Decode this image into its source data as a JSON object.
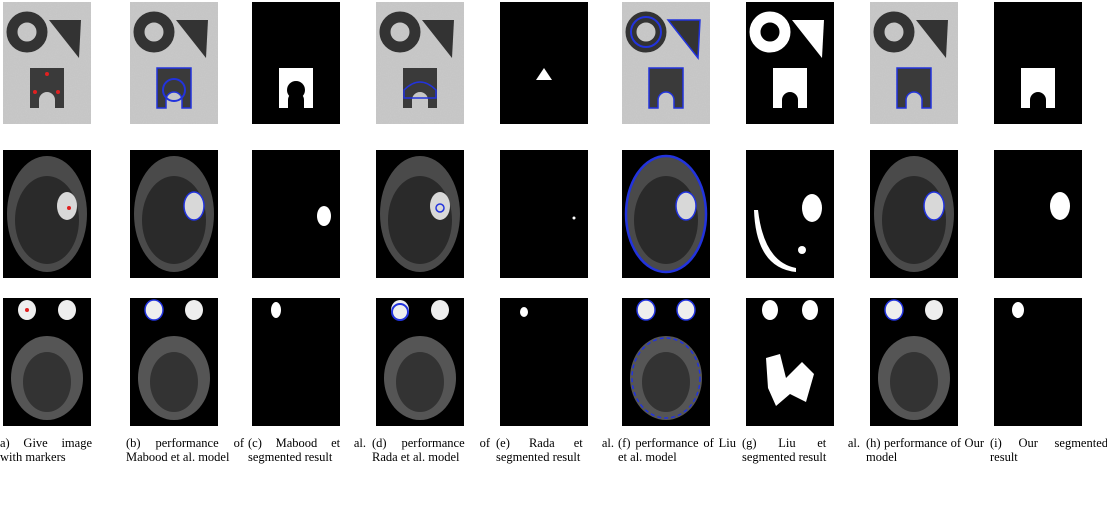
{
  "figure": {
    "captions": [
      "a) Give image with markers",
      "(b) performance of Mabood et al. model",
      "(c) Mabood et al. segmented result",
      "(d) performance of Rada et al. model",
      "(e) Rada et al. segmented result",
      "(f) performance of Liu et al. model",
      "(g) Liu et al. segmented result",
      "(h) performance of Our model",
      "(i) Our segmented result"
    ]
  }
}
